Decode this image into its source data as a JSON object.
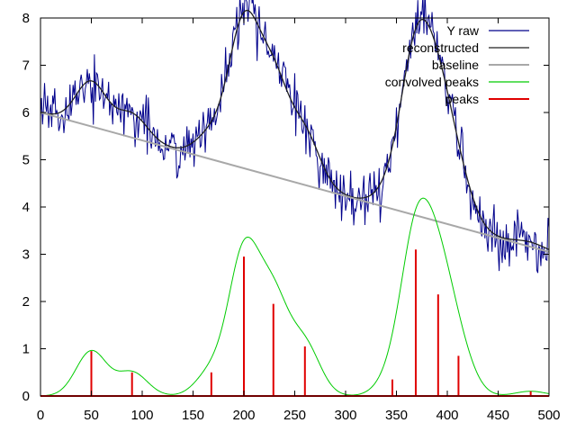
{
  "chart_data": {
    "type": "line",
    "title": "",
    "xlabel": "",
    "ylabel": "",
    "xlim": [
      0,
      500
    ],
    "ylim": [
      0,
      8
    ],
    "xticks": [
      0,
      50,
      100,
      150,
      200,
      250,
      300,
      350,
      400,
      450,
      500
    ],
    "yticks": [
      0,
      1,
      2,
      3,
      4,
      5,
      6,
      7,
      8
    ],
    "grid": false,
    "legend_position": "top-right",
    "background_peaks": [
      {
        "center": 50,
        "height": 0.95,
        "width": 15
      },
      {
        "center": 90,
        "height": 0.5,
        "width": 15
      },
      {
        "center": 168,
        "height": 0.5,
        "width": 15
      },
      {
        "center": 200,
        "height": 2.95,
        "width": 15
      },
      {
        "center": 229,
        "height": 1.95,
        "width": 15
      },
      {
        "center": 260,
        "height": 1.05,
        "width": 15
      },
      {
        "center": 346,
        "height": 0.35,
        "width": 15
      },
      {
        "center": 369,
        "height": 3.1,
        "width": 15
      },
      {
        "center": 391,
        "height": 2.15,
        "width": 15
      },
      {
        "center": 411,
        "height": 0.85,
        "width": 15
      },
      {
        "center": 482,
        "height": 0.1,
        "width": 15
      }
    ],
    "baseline": {
      "x": [
        0,
        500
      ],
      "y": [
        6.0,
        3.05
      ]
    },
    "series": [
      {
        "name": "Y raw",
        "color": "#00008b",
        "style": "noisy-line",
        "noise": 0.28
      },
      {
        "name": "reconstructed",
        "color": "#202020",
        "style": "line"
      },
      {
        "name": "baseline",
        "color": "#a8a8a8",
        "style": "line"
      },
      {
        "name": "convolved peaks",
        "color": "#00cc00",
        "style": "line"
      },
      {
        "name": "peaks",
        "color": "#e00000",
        "style": "impulses"
      }
    ]
  },
  "legend": [
    {
      "label": "Y raw",
      "color": "#00008b"
    },
    {
      "label": "reconstructed",
      "color": "#202020"
    },
    {
      "label": "baseline",
      "color": "#a8a8a8"
    },
    {
      "label": "convolved peaks",
      "color": "#00cc00"
    },
    {
      "label": "peaks",
      "color": "#e00000"
    }
  ]
}
